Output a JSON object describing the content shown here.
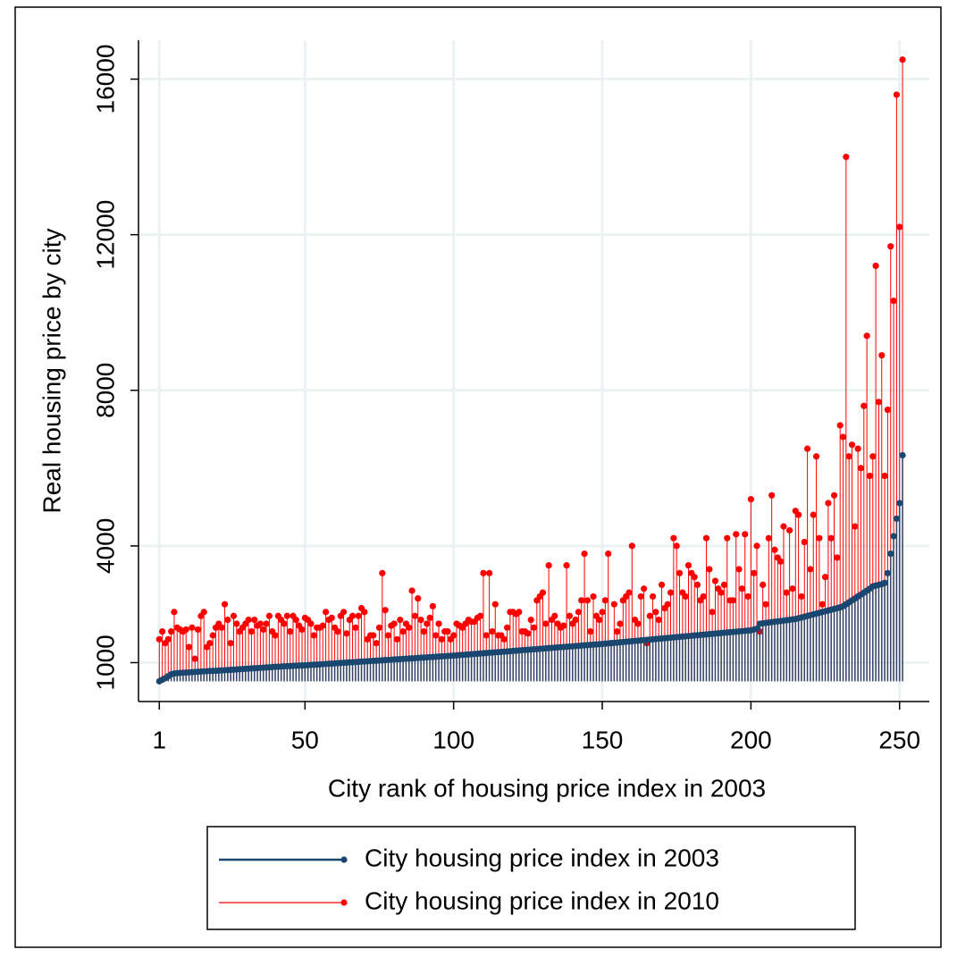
{
  "chart_data": {
    "type": "dropline",
    "x_label": "City rank of housing price index in 2003",
    "y_label": "Real housing price by city",
    "xlim": [
      -6,
      260
    ],
    "xticks": [
      1,
      50,
      100,
      150,
      200,
      250
    ],
    "ylim": [
      0,
      17000
    ],
    "yticks": [
      1000,
      4000,
      8000,
      12000,
      16000
    ],
    "grid": true,
    "legend": "bottom",
    "x": [
      1,
      2,
      3,
      4,
      5,
      6,
      7,
      8,
      9,
      10,
      11,
      12,
      13,
      14,
      15,
      16,
      17,
      18,
      19,
      20,
      21,
      22,
      23,
      24,
      25,
      26,
      27,
      28,
      29,
      30,
      31,
      32,
      33,
      34,
      35,
      36,
      37,
      38,
      39,
      40,
      41,
      42,
      43,
      44,
      45,
      46,
      47,
      48,
      49,
      50,
      51,
      52,
      53,
      54,
      55,
      56,
      57,
      58,
      59,
      60,
      61,
      62,
      63,
      64,
      65,
      66,
      67,
      68,
      69,
      70,
      71,
      72,
      73,
      74,
      75,
      76,
      77,
      78,
      79,
      80,
      81,
      82,
      83,
      84,
      85,
      86,
      87,
      88,
      89,
      90,
      91,
      92,
      93,
      94,
      95,
      96,
      97,
      98,
      99,
      100,
      101,
      102,
      103,
      104,
      105,
      106,
      107,
      108,
      109,
      110,
      111,
      112,
      113,
      114,
      115,
      116,
      117,
      118,
      119,
      120,
      121,
      122,
      123,
      124,
      125,
      126,
      127,
      128,
      129,
      130,
      131,
      132,
      133,
      134,
      135,
      136,
      137,
      138,
      139,
      140,
      141,
      142,
      143,
      144,
      145,
      146,
      147,
      148,
      149,
      150,
      151,
      152,
      153,
      154,
      155,
      156,
      157,
      158,
      159,
      160,
      161,
      162,
      163,
      164,
      165,
      166,
      167,
      168,
      169,
      170,
      171,
      172,
      173,
      174,
      175,
      176,
      177,
      178,
      179,
      180,
      181,
      182,
      183,
      184,
      185,
      186,
      187,
      188,
      189,
      190,
      191,
      192,
      193,
      194,
      195,
      196,
      197,
      198,
      199,
      200,
      201,
      202,
      203,
      204,
      205,
      206,
      207,
      208,
      209,
      210,
      211,
      212,
      213,
      214,
      215,
      216,
      217,
      218,
      219,
      220,
      221,
      222,
      223,
      224,
      225,
      226,
      227,
      228,
      229,
      230,
      231,
      232,
      233,
      234,
      235,
      236,
      237,
      238,
      239,
      240,
      241,
      242,
      243,
      244,
      245,
      246,
      247,
      248,
      249,
      250,
      251
    ],
    "series": [
      {
        "name": "City housing price index in 2010",
        "color": "#ff0000",
        "values": [
          1600,
          1800,
          1500,
          1600,
          1800,
          2300,
          1900,
          1850,
          1800,
          1850,
          1400,
          1900,
          1100,
          1850,
          2200,
          2300,
          1400,
          1500,
          1700,
          1900,
          2000,
          1900,
          2500,
          2100,
          1500,
          2200,
          2000,
          1800,
          1900,
          2000,
          2100,
          1800,
          2100,
          1950,
          2000,
          1850,
          2000,
          2200,
          1800,
          1700,
          2200,
          2100,
          2000,
          2200,
          1800,
          2200,
          2100,
          1950,
          1850,
          2150,
          2100,
          2000,
          1700,
          1900,
          1900,
          1950,
          2300,
          2100,
          2150,
          1900,
          1800,
          2200,
          2300,
          1750,
          2100,
          2200,
          1900,
          2200,
          2400,
          2300,
          1600,
          1700,
          1700,
          1500,
          1900,
          3300,
          2350,
          1700,
          1950,
          2000,
          1600,
          2100,
          1800,
          2000,
          1900,
          2850,
          2200,
          2650,
          2100,
          1800,
          2000,
          2150,
          2450,
          1700,
          2000,
          1600,
          1800,
          1800,
          1600,
          1700,
          2000,
          1950,
          1900,
          2000,
          2100,
          2050,
          2050,
          2150,
          2200,
          3300,
          1700,
          3300,
          1800,
          2500,
          1700,
          1700,
          1600,
          1900,
          2300,
          2300,
          2250,
          2300,
          1800,
          1800,
          1750,
          2100,
          1900,
          2600,
          2700,
          2800,
          2000,
          3500,
          2100,
          2200,
          2000,
          1900,
          1950,
          3500,
          2200,
          2000,
          2100,
          2300,
          2600,
          3800,
          2600,
          1800,
          2700,
          2200,
          2100,
          2300,
          2600,
          3800,
          1500,
          2500,
          1800,
          2000,
          2600,
          2700,
          2800,
          4000,
          2100,
          2000,
          2700,
          2900,
          1500,
          2200,
          2700,
          2300,
          2100,
          3000,
          2400,
          2500,
          2800,
          4200,
          4000,
          3300,
          2800,
          2700,
          3500,
          3300,
          3200,
          3000,
          2600,
          2700,
          4200,
          3400,
          2300,
          3100,
          2900,
          2800,
          3000,
          4200,
          2600,
          2600,
          4300,
          3400,
          2900,
          4300,
          2700,
          5200,
          3300,
          4000,
          1800,
          3000,
          2500,
          4200,
          5300,
          3900,
          3700,
          3600,
          4500,
          2800,
          4400,
          2900,
          4900,
          4800,
          2700,
          4100,
          6500,
          3400,
          4800,
          6300,
          4200,
          2500,
          3200,
          5100,
          4200,
          5300,
          3700,
          7100,
          6800,
          14000,
          6300,
          6600,
          4500,
          6500,
          6000,
          7600,
          9400,
          5800,
          6300,
          11200,
          7700,
          8900,
          5800,
          7500,
          11700,
          10300,
          15600,
          12200,
          16500
        ]
      },
      {
        "name": "City housing price index in 2003",
        "color": "#1a476f",
        "values": [
          520,
          560,
          600,
          650,
          700,
          720,
          730,
          735,
          740,
          745,
          750,
          755,
          760,
          765,
          770,
          775,
          780,
          785,
          788,
          790,
          795,
          800,
          805,
          810,
          815,
          820,
          825,
          830,
          835,
          840,
          845,
          850,
          855,
          860,
          865,
          870,
          875,
          880,
          885,
          890,
          895,
          900,
          905,
          908,
          912,
          916,
          920,
          924,
          927,
          930,
          935,
          940,
          945,
          950,
          955,
          960,
          965,
          970,
          975,
          980,
          985,
          990,
          995,
          1000,
          1005,
          1010,
          1015,
          1020,
          1025,
          1030,
          1035,
          1040,
          1045,
          1050,
          1055,
          1060,
          1065,
          1070,
          1075,
          1080,
          1085,
          1090,
          1095,
          1100,
          1105,
          1110,
          1115,
          1120,
          1125,
          1130,
          1135,
          1140,
          1145,
          1150,
          1155,
          1160,
          1165,
          1170,
          1175,
          1180,
          1186,
          1192,
          1198,
          1204,
          1210,
          1216,
          1222,
          1228,
          1234,
          1240,
          1246,
          1252,
          1258,
          1264,
          1270,
          1276,
          1282,
          1288,
          1294,
          1300,
          1306,
          1312,
          1318,
          1324,
          1330,
          1336,
          1342,
          1348,
          1354,
          1360,
          1366,
          1372,
          1378,
          1384,
          1390,
          1396,
          1402,
          1408,
          1414,
          1420,
          1426,
          1432,
          1438,
          1444,
          1450,
          1456,
          1462,
          1468,
          1474,
          1480,
          1487,
          1494,
          1501,
          1508,
          1515,
          1522,
          1529,
          1536,
          1543,
          1550,
          1557,
          1564,
          1571,
          1578,
          1585,
          1592,
          1599,
          1606,
          1613,
          1620,
          1627,
          1634,
          1641,
          1648,
          1655,
          1662,
          1669,
          1676,
          1683,
          1690,
          1697,
          1704,
          1711,
          1718,
          1725,
          1732,
          1739,
          1746,
          1753,
          1760,
          1767,
          1774,
          1781,
          1788,
          1795,
          1802,
          1809,
          1816,
          1823,
          1830,
          1850,
          1870,
          2000,
          2010,
          2020,
          2030,
          2040,
          2050,
          2060,
          2070,
          2080,
          2090,
          2100,
          2110,
          2120,
          2140,
          2160,
          2180,
          2200,
          2220,
          2240,
          2260,
          2280,
          2300,
          2320,
          2340,
          2360,
          2380,
          2400,
          2420,
          2450,
          2500,
          2550,
          2600,
          2650,
          2700,
          2750,
          2800,
          2850,
          2900,
          2960,
          2980,
          3000,
          3020,
          3050,
          3300,
          3800,
          4250,
          4700,
          5100,
          6330
        ]
      }
    ]
  }
}
